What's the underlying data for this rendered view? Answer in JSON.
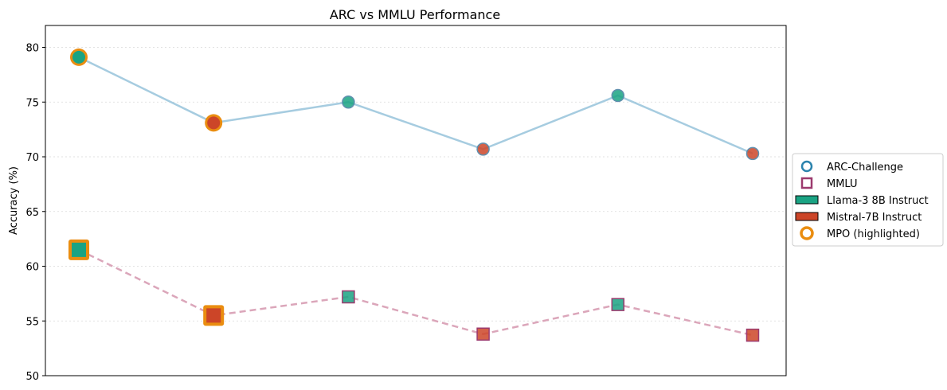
{
  "chart_data": {
    "type": "line",
    "title": "ARC vs MMLU Performance",
    "xlabel": "",
    "ylabel": "Accuracy (%)",
    "ylim": [
      50,
      82
    ],
    "yticks": [
      50,
      55,
      60,
      65,
      70,
      75,
      80
    ],
    "x": [
      0,
      1,
      2,
      3,
      4,
      5
    ],
    "grid": "horizontal-dotted",
    "legend_position": "center-right-outside",
    "colors": {
      "arc_line": "#a6cce0",
      "mmlu_line": "#dba6ba",
      "arc_marker_edge": "#2b83ad",
      "mmlu_marker_edge": "#9c3a6e",
      "llama": "#1aa383",
      "mistral": "#cc4528",
      "highlight": "#ea8d10"
    },
    "model_per_point": [
      "llama",
      "mistral",
      "llama",
      "mistral",
      "llama",
      "mistral"
    ],
    "highlighted_points": [
      0,
      1
    ],
    "series": [
      {
        "key": "arc",
        "values": [
          79.1,
          73.1,
          75.0,
          70.7,
          75.6,
          70.3
        ]
      },
      {
        "key": "mmlu",
        "values": [
          61.5,
          55.5,
          57.2,
          53.8,
          56.5,
          53.7
        ]
      }
    ],
    "legend": [
      {
        "label": "ARC-Challenge",
        "marker": "circle-outline",
        "color": "#2b83ad"
      },
      {
        "label": "MMLU",
        "marker": "square-outline",
        "color": "#9c3a6e"
      },
      {
        "label": "Llama-3 8B Instruct",
        "marker": "patch",
        "color": "#1aa383"
      },
      {
        "label": "Mistral-7B Instruct",
        "marker": "patch",
        "color": "#cc4528"
      },
      {
        "label": "MPO (highlighted)",
        "marker": "circle-outline-thick",
        "color": "#ea8d10"
      }
    ]
  }
}
